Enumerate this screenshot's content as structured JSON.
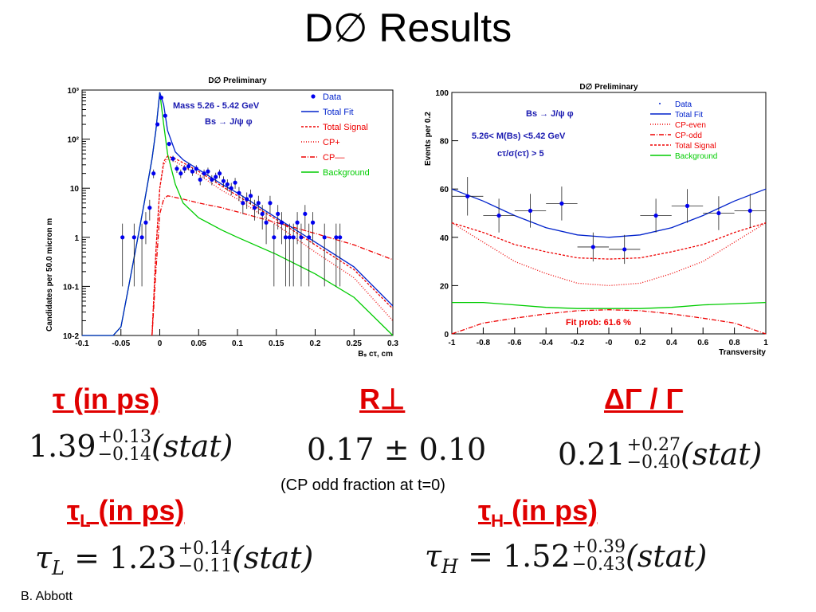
{
  "slide": {
    "title": "D∅ Results",
    "footer": "B. Abbott",
    "note": "(CP odd fraction at t=0)"
  },
  "chart_data": [
    {
      "type": "scatter",
      "title": "D∅ Preliminary",
      "xlabel": "Bₛ cτ,  cm",
      "ylabel": "Candidates per 50.0 micron m",
      "yscale": "log",
      "xlim": [
        -0.1,
        0.3
      ],
      "ylim": [
        0.01,
        1000
      ],
      "xticks": [
        "-0.1",
        "-0.05",
        "0",
        "0.05",
        "0.1",
        "0.15",
        "0.2",
        "0.25",
        "0.3"
      ],
      "yticks": [
        "10-2",
        "10-1",
        "1",
        "10",
        "10²",
        "10³"
      ],
      "annotation": [
        "Mass 5.26 - 5.42 GeV",
        "Bs → J/ψ φ"
      ],
      "legend": [
        "Data",
        "Total Fit",
        "Total Signal",
        "CP+",
        "CP––",
        "Background"
      ],
      "legend_position": "top-right",
      "data": {
        "x": [
          -0.048,
          -0.033,
          -0.023,
          -0.018,
          -0.013,
          -0.008,
          -0.003,
          0.002,
          0.007,
          0.012,
          0.017,
          0.022,
          0.027,
          0.032,
          0.037,
          0.042,
          0.047,
          0.052,
          0.057,
          0.062,
          0.067,
          0.072,
          0.077,
          0.082,
          0.087,
          0.092,
          0.097,
          0.102,
          0.107,
          0.112,
          0.117,
          0.122,
          0.127,
          0.132,
          0.137,
          0.142,
          0.147,
          0.152,
          0.157,
          0.162,
          0.167,
          0.172,
          0.177,
          0.182,
          0.187,
          0.192,
          0.197,
          0.212,
          0.227,
          0.232
        ],
        "y": [
          1,
          1,
          1,
          2,
          4,
          20,
          200,
          700,
          300,
          80,
          40,
          25,
          20,
          25,
          28,
          22,
          25,
          15,
          20,
          22,
          15,
          17,
          20,
          14,
          12,
          10,
          13,
          8,
          5,
          6,
          7,
          4,
          5,
          3,
          2,
          5,
          1,
          3,
          2,
          1,
          1,
          1,
          2,
          1,
          3,
          1,
          2,
          1,
          1,
          1
        ]
      },
      "curves": {
        "x": [
          -0.1,
          -0.06,
          -0.05,
          -0.04,
          -0.03,
          -0.02,
          -0.01,
          -0.005,
          0,
          0.005,
          0.01,
          0.02,
          0.03,
          0.05,
          0.08,
          0.1,
          0.15,
          0.2,
          0.25,
          0.3
        ],
        "total_fit": [
          0.01,
          0.01,
          0.015,
          0.1,
          0.7,
          5,
          40,
          150,
          900,
          500,
          150,
          55,
          38,
          24,
          12,
          8,
          2.5,
          0.8,
          0.25,
          0.04
        ],
        "total_signal": [
          null,
          null,
          null,
          null,
          null,
          null,
          0.01,
          0.5,
          10,
          35,
          45,
          40,
          33,
          22,
          11,
          7,
          2.3,
          0.7,
          0.22,
          0.035
        ],
        "cp_plus": [
          null,
          null,
          null,
          null,
          null,
          null,
          0.01,
          0.5,
          10,
          30,
          40,
          35,
          28,
          19,
          9,
          6,
          1.8,
          0.5,
          0.15,
          0.02
        ],
        "cp_minus": [
          null,
          null,
          null,
          null,
          null,
          null,
          0.01,
          0.2,
          3,
          6,
          7,
          6.5,
          6,
          5,
          4,
          3.3,
          2,
          1.2,
          0.7,
          0.35
        ],
        "background": [
          0.01,
          0.01,
          0.015,
          0.1,
          0.7,
          5,
          40,
          150,
          900,
          200,
          50,
          12,
          5,
          2.5,
          1.4,
          1,
          0.45,
          0.18,
          0.06,
          0.01
        ]
      }
    },
    {
      "type": "scatter",
      "title": "D∅ Preliminary",
      "xlabel": "Transversity",
      "ylabel": "Events per 0.2",
      "xlim": [
        -1,
        1
      ],
      "ylim": [
        0,
        100
      ],
      "xticks": [
        "-1",
        "-0.8",
        "-0.6",
        "-0.4",
        "-0.2",
        "-0",
        "0.2",
        "0.4",
        "0.6",
        "0.8",
        "1"
      ],
      "yticks": [
        "0",
        "20",
        "40",
        "60",
        "80",
        "100"
      ],
      "annotation": [
        "Bs → J/ψ φ",
        "5.26< M(Bs) <5.42 GeV",
        "cτ/σ(cτ) > 5",
        "Fit prob: 61.6 %"
      ],
      "legend": [
        "Data",
        "Total Fit",
        "CP-even",
        "CP-odd",
        "Total Signal",
        "Background"
      ],
      "legend_position": "top-right",
      "data": {
        "x": [
          -0.9,
          -0.7,
          -0.5,
          -0.3,
          -0.1,
          0.1,
          0.3,
          0.5,
          0.7,
          0.9
        ],
        "y": [
          57,
          49,
          51,
          54,
          36,
          35,
          49,
          53,
          50,
          51
        ],
        "yerr": [
          8,
          7,
          7,
          7,
          6,
          6,
          7,
          7,
          7,
          7
        ]
      },
      "curves": {
        "x": [
          -1,
          -0.8,
          -0.6,
          -0.4,
          -0.2,
          0,
          0.2,
          0.4,
          0.6,
          0.8,
          1
        ],
        "total_fit": [
          60,
          55,
          49,
          44,
          41,
          40,
          41,
          44,
          49,
          55,
          60
        ],
        "cp_even": [
          46,
          38,
          30,
          25,
          21,
          20,
          21,
          25,
          30,
          38,
          46
        ],
        "cp_odd": [
          0,
          4.5,
          6.5,
          8.3,
          9.6,
          10,
          9.6,
          8.3,
          6.5,
          4.5,
          0
        ],
        "total_signal": [
          46,
          42,
          37,
          34,
          31.5,
          31,
          31.5,
          34,
          37,
          42,
          46
        ],
        "background": [
          13,
          13,
          12,
          11,
          10.5,
          10.5,
          10.5,
          11,
          12,
          12.5,
          13
        ]
      }
    }
  ],
  "results": {
    "tau": {
      "label": "τ (in  ps)",
      "value": "1.39",
      "sup": "+0.13",
      "sub": "−0.14",
      "suffix": "(stat)"
    },
    "rperp": {
      "label": "R⊥",
      "value": "0.17 ± 0.10"
    },
    "dg": {
      "label": "ΔΓ / Γ",
      "value": "0.21",
      "sup": "+0.27",
      "sub": "−0.40",
      "suffix": "(stat)"
    },
    "tauL": {
      "label": "τ",
      "label_sub": "L",
      "label_suffix": " (in ps)",
      "lhs": "τ",
      "lhs_sub": "L",
      "value": "= 1.23",
      "sup": "+0.14",
      "sub": "−0.11",
      "suffix": "(stat)"
    },
    "tauH": {
      "label": "τ",
      "label_sub": "H",
      "label_suffix": "  (in ps)",
      "lhs": "τ",
      "lhs_sub": "H",
      "value": "= 1.52",
      "sup": "+0.39",
      "sub": "−0.43",
      "suffix": "(stat)"
    }
  },
  "colors": {
    "data": "#0000ee",
    "fit": "#0022cc",
    "signal": "#ee0000",
    "background": "#00cc00",
    "label": "#e00000",
    "annot": "#1a1ab0"
  }
}
